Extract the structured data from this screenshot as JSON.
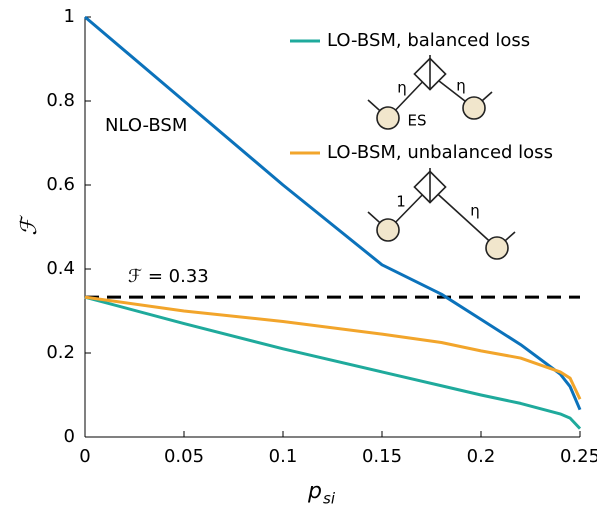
{
  "chart_data": {
    "type": "line",
    "ylabel": "ℱ",
    "xlabel": "p",
    "xlabel_sub": "si",
    "xlim": [
      0,
      0.25
    ],
    "xticks": [
      0,
      0.05,
      0.1,
      0.15,
      0.2,
      0.25
    ],
    "ylim": [
      0,
      1
    ],
    "yticks": [
      0,
      0.2,
      0.4,
      0.6,
      0.8,
      1
    ],
    "reference_line": {
      "value": 0.333,
      "label": "ℱ = 0.33",
      "color": "#000000"
    },
    "x": [
      0,
      0.05,
      0.1,
      0.15,
      0.18,
      0.2,
      0.22,
      0.24,
      0.245,
      0.25
    ],
    "series": [
      {
        "name": "NLO-BSM",
        "color": "#0b72bb",
        "values": [
          1,
          0.8,
          0.6,
          0.41,
          0.34,
          0.28,
          0.22,
          0.15,
          0.12,
          0.065
        ]
      },
      {
        "name": "LO-BSM, balanced loss",
        "color": "#1faa9c",
        "values": [
          0.333,
          0.27,
          0.21,
          0.155,
          0.122,
          0.1,
          0.08,
          0.055,
          0.045,
          0.02
        ]
      },
      {
        "name": "LO-BSM, unbalanced loss",
        "color": "#f2a52b",
        "values": [
          0.333,
          0.3,
          0.275,
          0.245,
          0.225,
          0.205,
          0.188,
          0.155,
          0.14,
          0.09
        ]
      }
    ],
    "insets": {
      "balanced": {
        "left_loss": "η",
        "right_loss": "η",
        "source": "ES"
      },
      "unbalanced": {
        "left_loss": "1",
        "right_loss": "η"
      }
    }
  }
}
